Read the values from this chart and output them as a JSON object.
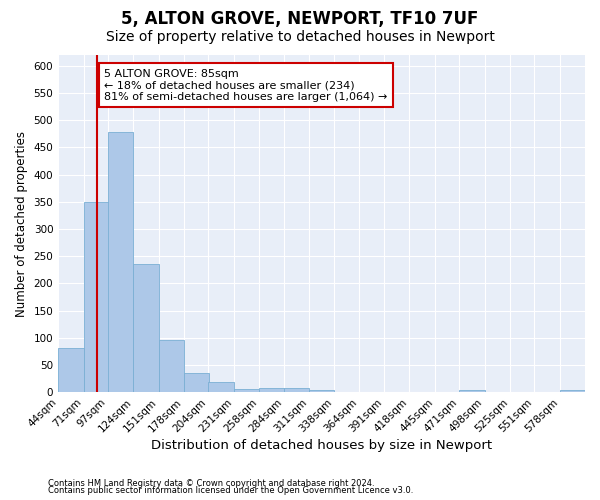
{
  "title": "5, ALTON GROVE, NEWPORT, TF10 7UF",
  "subtitle": "Size of property relative to detached houses in Newport",
  "xlabel": "Distribution of detached houses by size in Newport",
  "ylabel": "Number of detached properties",
  "footer_line1": "Contains HM Land Registry data © Crown copyright and database right 2024.",
  "footer_line2": "Contains public sector information licensed under the Open Government Licence v3.0.",
  "bar_edges": [
    44,
    71,
    97,
    124,
    151,
    178,
    204,
    231,
    258,
    284,
    311,
    338,
    364,
    391,
    418,
    445,
    471,
    498,
    525,
    551,
    578
  ],
  "bar_values": [
    82,
    350,
    478,
    235,
    96,
    35,
    18,
    6,
    8,
    8,
    5,
    0,
    0,
    0,
    0,
    0,
    4,
    0,
    0,
    0,
    4
  ],
  "bar_color": "#adc8e8",
  "bar_edge_color": "#7aafd4",
  "property_size": 85,
  "vline_color": "#cc0000",
  "annotation_text": "5 ALTON GROVE: 85sqm\n← 18% of detached houses are smaller (234)\n81% of semi-detached houses are larger (1,064) →",
  "annotation_box_color": "#cc0000",
  "ylim": [
    0,
    620
  ],
  "yticks": [
    0,
    50,
    100,
    150,
    200,
    250,
    300,
    350,
    400,
    450,
    500,
    550,
    600
  ],
  "plot_bg_color": "#e8eef8",
  "fig_bg_color": "#ffffff",
  "grid_color": "#ffffff",
  "title_fontsize": 12,
  "subtitle_fontsize": 10,
  "xlabel_fontsize": 9.5,
  "ylabel_fontsize": 8.5,
  "tick_fontsize": 7.5,
  "footer_fontsize": 6,
  "annot_fontsize": 8
}
